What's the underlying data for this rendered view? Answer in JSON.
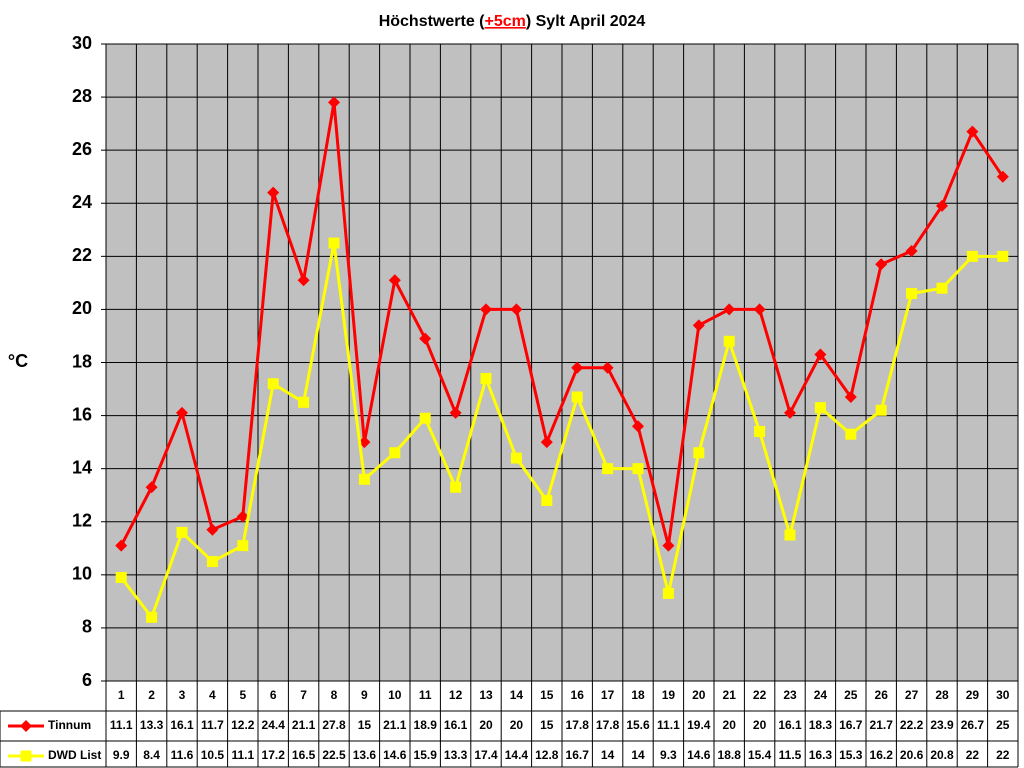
{
  "chart_data": {
    "type": "line",
    "title": [
      "Höchstwerte (",
      "+5cm",
      ") Sylt April 2024"
    ],
    "y_label": "°C",
    "categories": [
      "1",
      "2",
      "3",
      "4",
      "5",
      "6",
      "7",
      "8",
      "9",
      "10",
      "11",
      "12",
      "13",
      "14",
      "15",
      "16",
      "17",
      "18",
      "19",
      "20",
      "21",
      "22",
      "23",
      "24",
      "25",
      "26",
      "27",
      "28",
      "29",
      "30"
    ],
    "series": [
      {
        "name": "Tinnum",
        "color": "#ff0000",
        "marker": "diamond",
        "values": [
          11.1,
          13.3,
          16.1,
          11.7,
          12.2,
          24.4,
          21.1,
          27.8,
          15,
          21.1,
          18.9,
          16.1,
          20,
          20,
          15,
          17.8,
          17.8,
          15.6,
          11.1,
          19.4,
          20,
          20,
          16.1,
          18.3,
          16.7,
          21.7,
          22.2,
          23.9,
          26.7,
          25
        ]
      },
      {
        "name": "DWD List",
        "color": "#ffff00",
        "marker": "square",
        "values": [
          9.9,
          8.4,
          11.6,
          10.5,
          11.1,
          17.2,
          16.5,
          22.5,
          13.6,
          14.6,
          15.9,
          13.3,
          17.4,
          14.4,
          12.8,
          16.7,
          14,
          14,
          9.3,
          14.6,
          18.8,
          15.4,
          11.5,
          16.3,
          15.3,
          16.2,
          20.6,
          20.8,
          22,
          22
        ]
      }
    ],
    "ylim": [
      6,
      30
    ],
    "yticks": [
      6,
      8,
      10,
      12,
      14,
      16,
      18,
      20,
      22,
      24,
      26,
      28,
      30
    ],
    "grid": true,
    "plot_background": "#c0c0c0",
    "title_highlight_color": "#ff0000"
  }
}
